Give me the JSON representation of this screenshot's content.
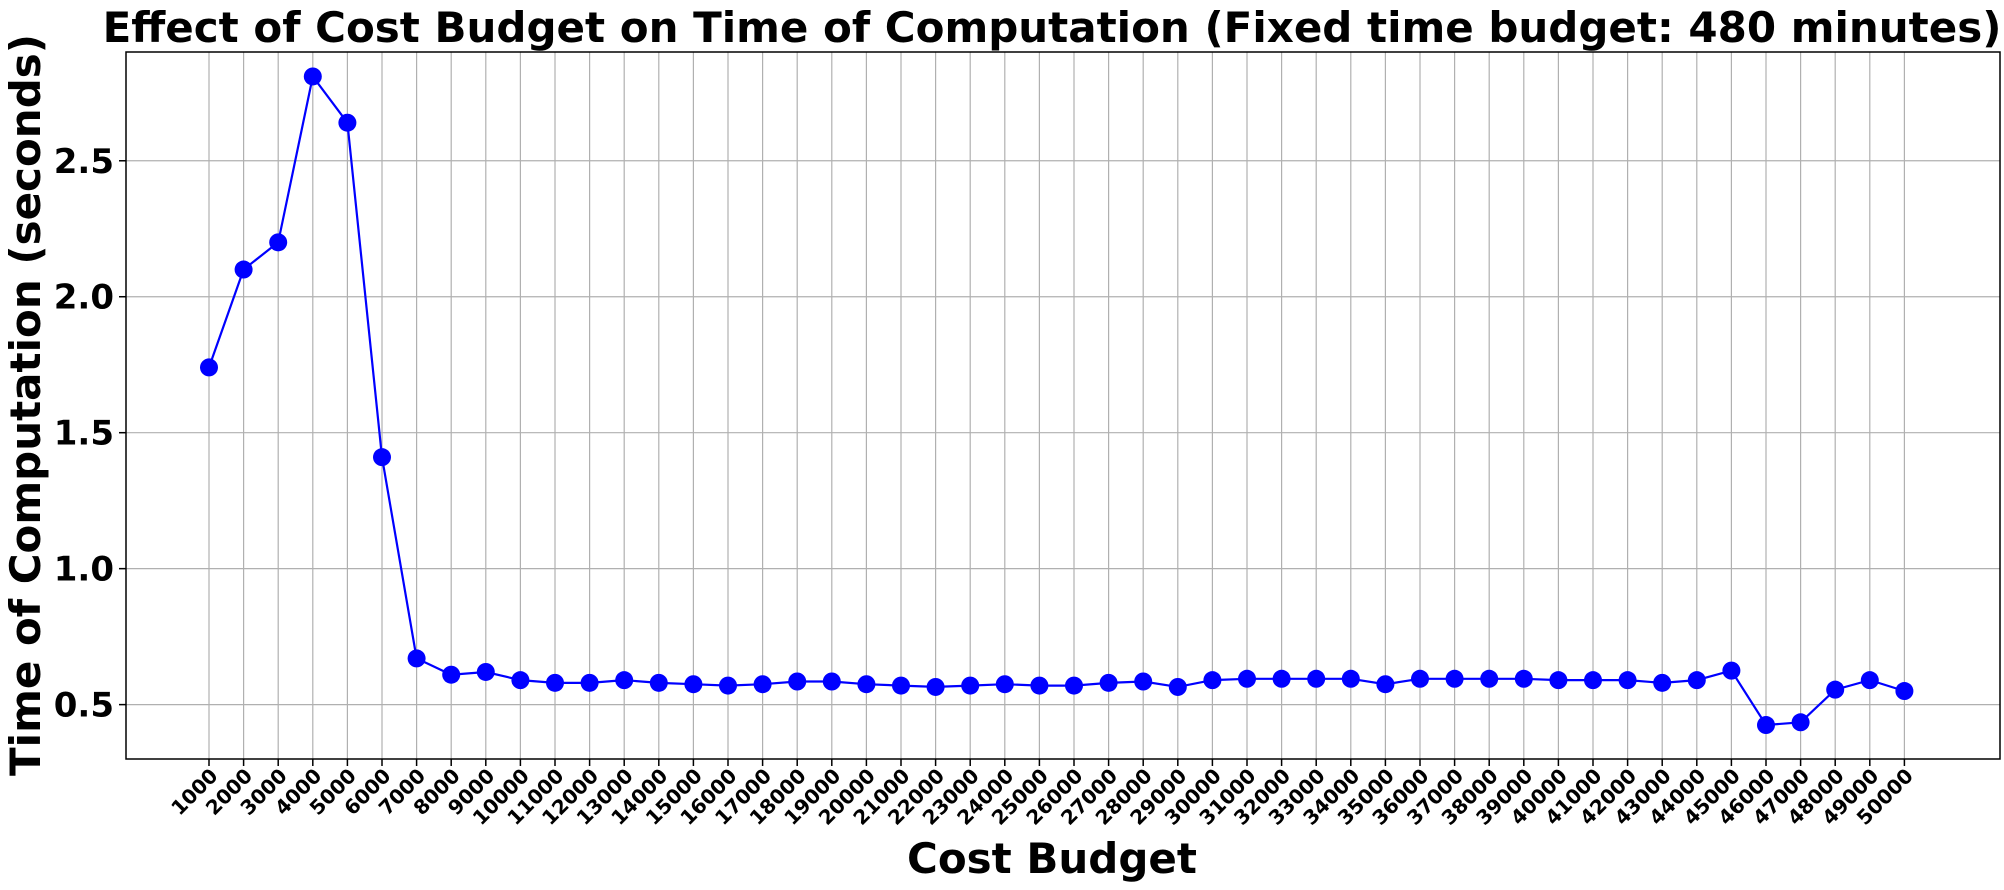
{
  "chart_data": {
    "type": "line",
    "title": "Effect of Cost Budget on Time of Computation (Fixed time budget: 480 minutes)",
    "xlabel": "Cost Budget",
    "ylabel": "Time of Computation (seconds)",
    "categories": [
      "1000",
      "2000",
      "3000",
      "4000",
      "5000",
      "6000",
      "7000",
      "8000",
      "9000",
      "10000",
      "11000",
      "12000",
      "13000",
      "14000",
      "15000",
      "16000",
      "17000",
      "18000",
      "19000",
      "20000",
      "21000",
      "22000",
      "23000",
      "24000",
      "25000",
      "26000",
      "27000",
      "28000",
      "29000",
      "30000",
      "31000",
      "32000",
      "33000",
      "34000",
      "35000",
      "36000",
      "37000",
      "38000",
      "39000",
      "40000",
      "41000",
      "42000",
      "43000",
      "44000",
      "45000",
      "46000",
      "47000",
      "48000",
      "49000",
      "50000"
    ],
    "series": [
      {
        "color": "#0000ff",
        "marker": "circle",
        "values": [
          1.74,
          2.1,
          2.2,
          2.81,
          2.64,
          1.41,
          0.67,
          0.61,
          0.62,
          0.59,
          0.58,
          0.58,
          0.59,
          0.58,
          0.575,
          0.57,
          0.575,
          0.585,
          0.585,
          0.575,
          0.57,
          0.565,
          0.57,
          0.575,
          0.57,
          0.57,
          0.58,
          0.585,
          0.565,
          0.59,
          0.595,
          0.595,
          0.595,
          0.595,
          0.575,
          0.595,
          0.595,
          0.595,
          0.595,
          0.59,
          0.59,
          0.59,
          0.58,
          0.59,
          0.625,
          0.425,
          0.435,
          0.555,
          0.59,
          0.55
        ]
      }
    ],
    "yticks": [
      0.5,
      1.0,
      1.5,
      2.0,
      2.5
    ],
    "ytick_labels": [
      "0.5",
      "1.0",
      "1.5",
      "2.0",
      "2.5"
    ],
    "ylim": [
      0.3,
      2.9
    ],
    "grid": true,
    "legend": "none",
    "xtick_rotation": 45
  }
}
